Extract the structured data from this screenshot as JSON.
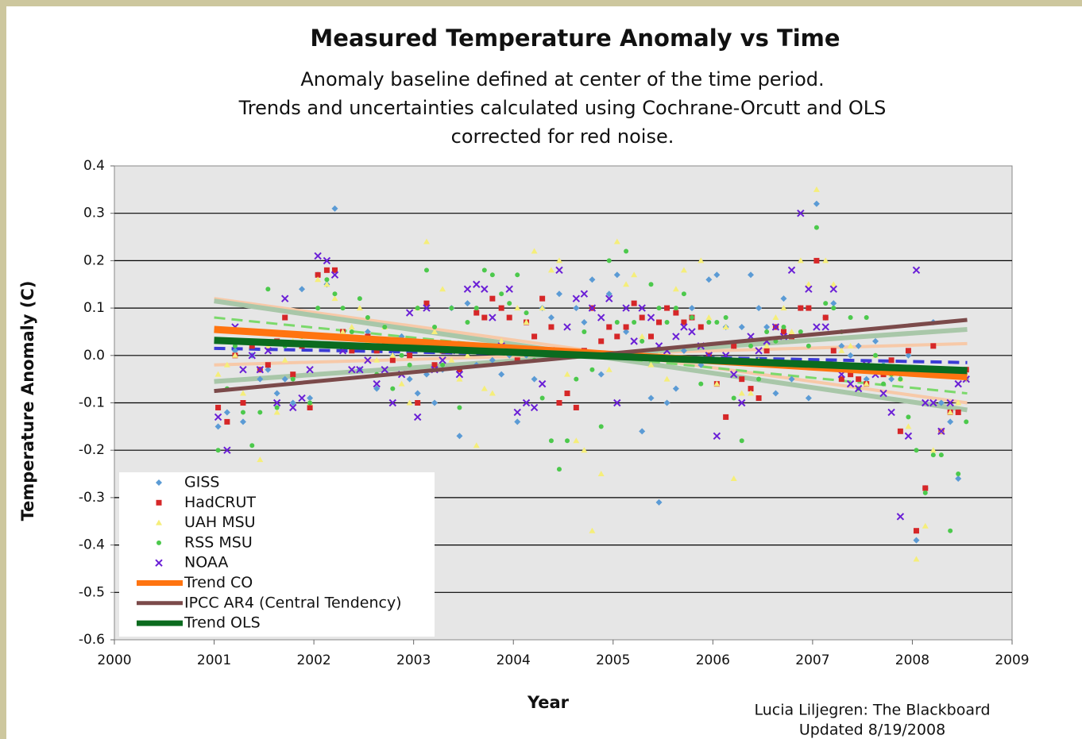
{
  "chart_data": {
    "type": "scatter",
    "title": "Measured Temperature Anomaly vs Time",
    "subtitle": [
      "Anomaly baseline defined at center of the time period.",
      "Trends and uncertainties calculated using Cochrane-Orcutt and OLS",
      "corrected for red noise."
    ],
    "xlabel": "Year",
    "ylabel": "Temperature Anomaly (C)",
    "credit": [
      "Lucia Liljegren: The Blackboard",
      "Updated 8/19/2008"
    ],
    "xlim": [
      2000,
      2009
    ],
    "xticks": [
      2000,
      2001,
      2002,
      2003,
      2004,
      2005,
      2006,
      2007,
      2008,
      2009
    ],
    "ylim": [
      -0.6,
      0.4
    ],
    "yticks": [
      0.4,
      0.3,
      0.2,
      0.1,
      {
        "value": 0,
        "label": "0.0"
      },
      -0.1,
      -0.2,
      -0.3,
      -0.4,
      -0.5,
      -0.6
    ],
    "grid": true,
    "legend": "lower left",
    "x": [
      2001.04,
      2001.13,
      2001.21,
      2001.29,
      2001.38,
      2001.46,
      2001.54,
      2001.63,
      2001.71,
      2001.79,
      2001.88,
      2001.96,
      2002.04,
      2002.13,
      2002.21,
      2002.29,
      2002.38,
      2002.46,
      2002.54,
      2002.63,
      2002.71,
      2002.79,
      2002.88,
      2002.96,
      2003.04,
      2003.13,
      2003.21,
      2003.29,
      2003.38,
      2003.46,
      2003.54,
      2003.63,
      2003.71,
      2003.79,
      2003.88,
      2003.96,
      2004.04,
      2004.13,
      2004.21,
      2004.29,
      2004.38,
      2004.46,
      2004.54,
      2004.63,
      2004.71,
      2004.79,
      2004.88,
      2004.96,
      2005.04,
      2005.13,
      2005.21,
      2005.29,
      2005.38,
      2005.46,
      2005.54,
      2005.63,
      2005.71,
      2005.79,
      2005.88,
      2005.96,
      2006.04,
      2006.13,
      2006.21,
      2006.29,
      2006.38,
      2006.46,
      2006.54,
      2006.63,
      2006.71,
      2006.79,
      2006.88,
      2006.96,
      2007.04,
      2007.13,
      2007.21,
      2007.29,
      2007.38,
      2007.46,
      2007.54,
      2007.63,
      2007.71,
      2007.79,
      2007.88,
      2007.96,
      2008.04,
      2008.13,
      2008.21,
      2008.29,
      2008.38,
      2008.46,
      2008.54
    ],
    "series": [
      {
        "name": "GISS",
        "color": "#5b9bd5",
        "marker": "diamond",
        "values": [
          -0.15,
          -0.12,
          0.01,
          -0.14,
          0.0,
          -0.05,
          -0.03,
          -0.08,
          -0.05,
          -0.1,
          0.14,
          -0.09,
          0.17,
          0.15,
          0.31,
          0.04,
          0.02,
          -0.03,
          0.05,
          -0.07,
          0.03,
          0,
          0.04,
          -0.05,
          -0.08,
          -0.04,
          -0.1,
          -0.03,
          0.1,
          -0.17,
          0.11,
          -0.02,
          0.02,
          -0.01,
          -0.04,
          0,
          -0.14,
          0,
          -0.05,
          0.1,
          0.08,
          0.13,
          0,
          0.1,
          0.07,
          0.16,
          -0.04,
          0.13,
          0.17,
          0.05,
          0,
          -0.16,
          -0.09,
          -0.31,
          -0.1,
          -0.07,
          0.01,
          0.1,
          -0.02,
          0.16,
          0.17,
          0.06,
          0.02,
          0.06,
          0.17,
          0.1,
          0.06,
          -0.08,
          0.12,
          -0.05,
          0.1,
          -0.09,
          0.32,
          0.08,
          0.11,
          0.02,
          0,
          0.02,
          -0.05,
          0.03,
          -0.02,
          -0.05,
          -0.04,
          0,
          -0.39,
          -0.28,
          0.07,
          -0.1,
          -0.14,
          -0.26,
          -0.05
        ]
      },
      {
        "name": "HadCRUT",
        "color": "#d62728",
        "marker": "square",
        "values": [
          -0.11,
          -0.14,
          0,
          -0.1,
          0.02,
          -0.03,
          -0.02,
          0.03,
          0.08,
          -0.04,
          0.02,
          -0.11,
          0.17,
          0.18,
          0.18,
          0.05,
          0.01,
          0.02,
          0.04,
          0.01,
          0.03,
          -0.01,
          0.03,
          0,
          -0.1,
          0.11,
          -0.02,
          0.01,
          0.02,
          -0.03,
          0.01,
          0.09,
          0.08,
          0.12,
          0.1,
          0.08,
          -0.01,
          0.07,
          0.04,
          0.12,
          0.06,
          -0.1,
          -0.08,
          -0.11,
          0.01,
          0.1,
          0.03,
          0.06,
          0.04,
          0.06,
          0.11,
          0.08,
          0.04,
          0.07,
          0.1,
          0.09,
          0.07,
          0.08,
          0.06,
          0,
          -0.06,
          -0.13,
          0.02,
          -0.05,
          -0.07,
          -0.09,
          0.01,
          0.06,
          0.05,
          0.04,
          0.1,
          0.1,
          0.2,
          0.08,
          0.01,
          -0.05,
          -0.04,
          -0.05,
          -0.06,
          -0.03,
          -0.04,
          -0.01,
          -0.16,
          0.01,
          -0.37,
          -0.28,
          0.02,
          -0.16,
          -0.12,
          -0.12,
          -0.03
        ]
      },
      {
        "name": "UAH MSU",
        "color": "#f5ee7a",
        "marker": "triangle",
        "values": [
          -0.04,
          -0.02,
          0,
          -0.08,
          0.03,
          -0.22,
          0.02,
          -0.12,
          -0.01,
          0.03,
          0.04,
          -0.1,
          0.16,
          0.15,
          0.12,
          0.05,
          0.06,
          0.1,
          0.03,
          -0.01,
          0.06,
          0,
          -0.06,
          -0.1,
          0.1,
          0.24,
          0.05,
          0.14,
          -0.01,
          -0.05,
          0,
          -0.19,
          -0.07,
          -0.08,
          0.03,
          0.01,
          0.1,
          0.07,
          0.22,
          0.1,
          0.18,
          0.2,
          -0.04,
          -0.18,
          -0.2,
          -0.37,
          -0.25,
          -0.03,
          0.24,
          0.15,
          0.17,
          0.04,
          -0.02,
          0,
          -0.05,
          0.14,
          0.18,
          -0.01,
          0.2,
          0.08,
          -0.06,
          0.06,
          -0.26,
          -0.08,
          -0.08,
          -0.01,
          0.02,
          0.08,
          0.1,
          0.05,
          0.2,
          0.15,
          0.35,
          0.2,
          0.15,
          0.01,
          0.02,
          -0.07,
          -0.06,
          0,
          -0.03,
          -0.04,
          -0.05,
          -0.15,
          -0.43,
          -0.36,
          -0.2,
          -0.16,
          -0.12,
          -0.1,
          -0.05
        ]
      },
      {
        "name": "RSS MSU",
        "color": "#4cc94c",
        "marker": "circle",
        "values": [
          -0.2,
          -0.07,
          0.02,
          -0.12,
          -0.19,
          -0.12,
          0.14,
          -0.11,
          0.02,
          -0.05,
          0.04,
          -0.1,
          0.1,
          0.16,
          0.13,
          0.1,
          0.05,
          0.12,
          0.08,
          -0.04,
          0.06,
          -0.07,
          0,
          -0.02,
          0.1,
          0.18,
          0.06,
          -0.02,
          0.1,
          -0.11,
          0.07,
          0.1,
          0.18,
          0.17,
          0.13,
          0.11,
          0.17,
          0.09,
          -0.01,
          -0.09,
          -0.18,
          -0.24,
          -0.18,
          -0.05,
          0.05,
          -0.03,
          -0.15,
          0.2,
          0.07,
          0.22,
          0.07,
          0.03,
          0.15,
          0.1,
          0.07,
          0.1,
          0.13,
          0.08,
          -0.06,
          0.07,
          0.07,
          0.08,
          -0.09,
          -0.18,
          0.02,
          -0.05,
          0.05,
          0.03,
          0.06,
          -0.02,
          0.05,
          0.02,
          0.27,
          0.11,
          0.1,
          0.05,
          0.08,
          -0.07,
          0.08,
          0,
          -0.06,
          -0.04,
          -0.05,
          -0.13,
          -0.2,
          -0.29,
          -0.21,
          -0.21,
          -0.37,
          -0.25,
          -0.14
        ]
      },
      {
        "name": "NOAA",
        "color": "#6a1fd6",
        "marker": "x",
        "values": [
          -0.13,
          -0.2,
          0.06,
          -0.03,
          0,
          -0.03,
          0.01,
          -0.1,
          0.12,
          -0.11,
          -0.09,
          -0.03,
          0.21,
          0.2,
          0.17,
          0.01,
          -0.03,
          -0.03,
          -0.01,
          -0.06,
          -0.03,
          -0.1,
          -0.04,
          0.09,
          -0.13,
          0.1,
          -0.03,
          -0.01,
          0.01,
          -0.04,
          0.14,
          0.15,
          0.14,
          0.08,
          0.02,
          0.14,
          -0.12,
          -0.1,
          -0.11,
          -0.06,
          0.01,
          0.18,
          0.06,
          0.12,
          0.13,
          0.1,
          0.08,
          0.12,
          -0.1,
          0.1,
          0.03,
          0.1,
          0.08,
          0.02,
          0.01,
          0.04,
          0.06,
          0.05,
          0.02,
          0,
          -0.17,
          0,
          -0.04,
          -0.1,
          0.04,
          0.01,
          0.03,
          0.06,
          0.04,
          0.18,
          0.3,
          0.14,
          0.06,
          0.06,
          0.14,
          -0.04,
          -0.06,
          -0.07,
          -0.02,
          -0.04,
          -0.08,
          -0.12,
          -0.34,
          -0.17,
          0.18,
          -0.1,
          -0.1,
          -0.16,
          -0.1,
          -0.06,
          -0.05
        ]
      }
    ],
    "bands": [
      {
        "color": "#f7c9a8",
        "width": 4,
        "dash": false,
        "x": [
          2001,
          2008.55
        ],
        "values": [
          0.12,
          -0.1
        ]
      },
      {
        "color": "#f7c9a8",
        "width": 4,
        "dash": false,
        "x": [
          2001,
          2008.55
        ],
        "values": [
          -0.02,
          0.025
        ]
      },
      {
        "color": "#a9c7a9",
        "width": 6,
        "dash": false,
        "x": [
          2001,
          2008.55
        ],
        "values": [
          0.115,
          -0.115
        ]
      },
      {
        "color": "#a9c7a9",
        "width": 6,
        "dash": false,
        "x": [
          2001,
          2008.55
        ],
        "values": [
          -0.055,
          0.055
        ]
      },
      {
        "color": "#7bd96b",
        "width": 3,
        "dash": true,
        "x": [
          2001,
          2008.55
        ],
        "values": [
          0.08,
          -0.08
        ]
      },
      {
        "color": "#3b3bd6",
        "width": 4,
        "dash": true,
        "x": [
          2001,
          2008.55
        ],
        "values": [
          0.015,
          -0.015
        ]
      }
    ],
    "lines": [
      {
        "name": "Trend CO",
        "color": "#ff7410",
        "width": 9,
        "x": [
          2001,
          2008.55
        ],
        "values": [
          0.055,
          -0.045
        ]
      },
      {
        "name": "IPCC AR4 (Central Tendency)",
        "color": "#7b4a4a",
        "width": 5,
        "x": [
          2001,
          2008.55
        ],
        "values": [
          -0.075,
          0.075
        ]
      },
      {
        "name": "Trend OLS",
        "color": "#0b6b1f",
        "width": 9,
        "x": [
          2001,
          2008.55
        ],
        "values": [
          0.032,
          -0.032
        ]
      }
    ]
  }
}
